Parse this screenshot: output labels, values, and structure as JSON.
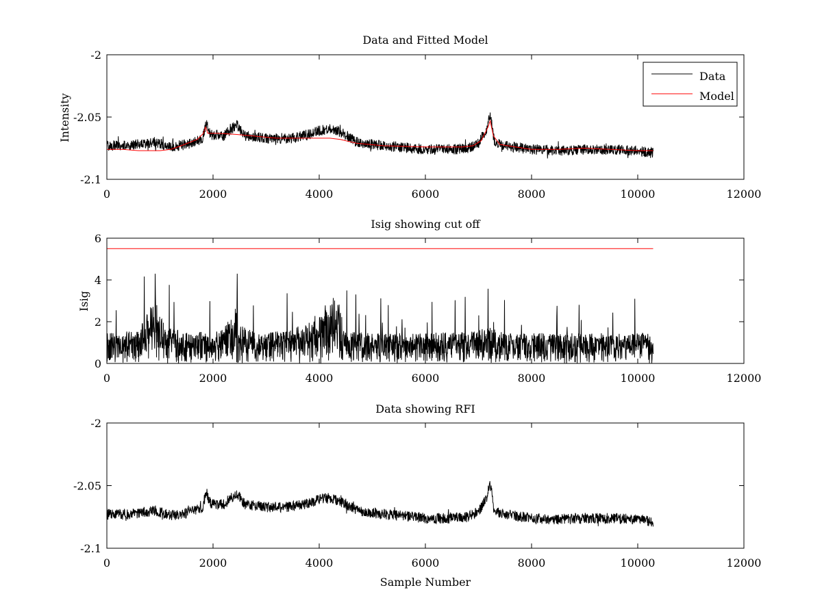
{
  "figure": {
    "background": "#ffffff"
  },
  "colors": {
    "data": "#000000",
    "model": "#ff0000",
    "cutoff": "#ff0000"
  },
  "chart_data": [
    {
      "type": "line",
      "title": "Data and Fitted Model",
      "xlabel": "",
      "ylabel": "Intensity",
      "xlim": [
        0,
        12000
      ],
      "ylim": [
        -2.1,
        -2.0
      ],
      "xticks": [
        0,
        2000,
        4000,
        6000,
        8000,
        10000,
        12000
      ],
      "xtick_labels": [
        "0",
        "2000",
        "4000",
        "6000",
        "8000",
        "10000",
        "12000"
      ],
      "yticks": [
        -2.1,
        -2.05,
        -2.0
      ],
      "ytick_labels": [
        "-2.1",
        "-2.05",
        "-2"
      ],
      "grid": false,
      "legend": {
        "placement": "top-right",
        "entries": [
          "Data",
          "Model"
        ]
      },
      "series": [
        {
          "name": "Data",
          "color": "#000000",
          "style": "noisy",
          "x": [
            0,
            300,
            600,
            900,
            1200,
            1500,
            1800,
            1870,
            1950,
            2200,
            2450,
            2600,
            3000,
            3500,
            3800,
            4000,
            4200,
            4400,
            4700,
            5000,
            5500,
            6000,
            6500,
            6800,
            7000,
            7150,
            7220,
            7300,
            7500,
            8000,
            8500,
            9000,
            9500,
            10000,
            10290
          ],
          "y": [
            -2.073,
            -2.073,
            -2.072,
            -2.07,
            -2.074,
            -2.072,
            -2.068,
            -2.055,
            -2.064,
            -2.065,
            -2.056,
            -2.065,
            -2.067,
            -2.067,
            -2.064,
            -2.061,
            -2.06,
            -2.062,
            -2.07,
            -2.072,
            -2.074,
            -2.076,
            -2.076,
            -2.075,
            -2.071,
            -2.06,
            -2.048,
            -2.07,
            -2.073,
            -2.076,
            -2.077,
            -2.076,
            -2.076,
            -2.077,
            -2.079
          ]
        },
        {
          "name": "Model",
          "color": "#ff0000",
          "x": [
            0,
            300,
            600,
            1000,
            1200,
            1400,
            1700,
            1820,
            1860,
            1900,
            2100,
            2450,
            2700,
            3200,
            3800,
            4200,
            4400,
            4700,
            5200,
            6000,
            6700,
            6900,
            7050,
            7180,
            7220,
            7280,
            7400,
            7700,
            8000,
            8500,
            9000,
            9500,
            10000,
            10290
          ],
          "y": [
            -2.076,
            -2.076,
            -2.077,
            -2.077,
            -2.076,
            -2.073,
            -2.068,
            -2.063,
            -2.058,
            -2.063,
            -2.063,
            -2.064,
            -2.065,
            -2.067,
            -2.067,
            -2.067,
            -2.068,
            -2.071,
            -2.073,
            -2.074,
            -2.074,
            -2.073,
            -2.069,
            -2.058,
            -2.053,
            -2.065,
            -2.072,
            -2.074,
            -2.076,
            -2.076,
            -2.075,
            -2.076,
            -2.077,
            -2.077
          ]
        }
      ]
    },
    {
      "type": "line",
      "title": "Isig showing cut off",
      "xlabel": "",
      "ylabel": "Isig",
      "xlim": [
        0,
        12000
      ],
      "ylim": [
        0,
        6
      ],
      "xticks": [
        0,
        2000,
        4000,
        6000,
        8000,
        10000,
        12000
      ],
      "xtick_labels": [
        "0",
        "2000",
        "4000",
        "6000",
        "8000",
        "10000",
        "12000"
      ],
      "yticks": [
        0,
        2,
        4,
        6
      ],
      "ytick_labels": [
        "0",
        "2",
        "4",
        "6"
      ],
      "grid": false,
      "series": [
        {
          "color": "#000000",
          "style": "spiky",
          "x": [
            0,
            600,
            800,
            900,
            950,
            1100,
            1500,
            2000,
            2400,
            2450,
            2500,
            2800,
            3500,
            4000,
            4200,
            4300,
            4400,
            4500,
            5000,
            6000,
            7000,
            7200,
            7500,
            8000,
            9000,
            10000,
            10290
          ],
          "y": [
            1.0,
            1.1,
            1.8,
            2.4,
            2.0,
            1.2,
            1.1,
            1.0,
            1.6,
            2.3,
            1.3,
            1.0,
            1.1,
            1.7,
            2.1,
            2.4,
            1.8,
            1.1,
            1.0,
            1.0,
            1.1,
            1.2,
            1.0,
            1.0,
            1.0,
            1.0,
            1.0
          ]
        },
        {
          "color": "#ff0000",
          "x": [
            0,
            10290
          ],
          "y": [
            5.5,
            5.5
          ]
        }
      ]
    },
    {
      "type": "line",
      "title": "Data showing RFI",
      "xlabel": "Sample Number",
      "ylabel": "",
      "xlim": [
        0,
        12000
      ],
      "ylim": [
        -2.1,
        -2.0
      ],
      "xticks": [
        0,
        2000,
        4000,
        6000,
        8000,
        10000,
        12000
      ],
      "xtick_labels": [
        "0",
        "2000",
        "4000",
        "6000",
        "8000",
        "10000",
        "12000"
      ],
      "yticks": [
        -2.1,
        -2.05,
        -2.0
      ],
      "ytick_labels": [
        "-2.1",
        "-2.05",
        "-2"
      ],
      "grid": false,
      "series": [
        {
          "color": "#000000",
          "style": "noisy",
          "x": [
            0,
            300,
            600,
            900,
            1200,
            1500,
            1800,
            1870,
            1950,
            2200,
            2450,
            2600,
            3000,
            3500,
            3800,
            4000,
            4200,
            4400,
            4700,
            5000,
            5500,
            6000,
            6500,
            6800,
            7000,
            7150,
            7220,
            7300,
            7500,
            8000,
            8500,
            9000,
            9500,
            10000,
            10290
          ],
          "y": [
            -2.073,
            -2.073,
            -2.072,
            -2.07,
            -2.074,
            -2.072,
            -2.068,
            -2.055,
            -2.064,
            -2.065,
            -2.056,
            -2.065,
            -2.067,
            -2.067,
            -2.064,
            -2.061,
            -2.06,
            -2.062,
            -2.07,
            -2.072,
            -2.074,
            -2.076,
            -2.076,
            -2.075,
            -2.071,
            -2.06,
            -2.048,
            -2.07,
            -2.073,
            -2.076,
            -2.077,
            -2.076,
            -2.076,
            -2.077,
            -2.079
          ]
        }
      ]
    }
  ]
}
